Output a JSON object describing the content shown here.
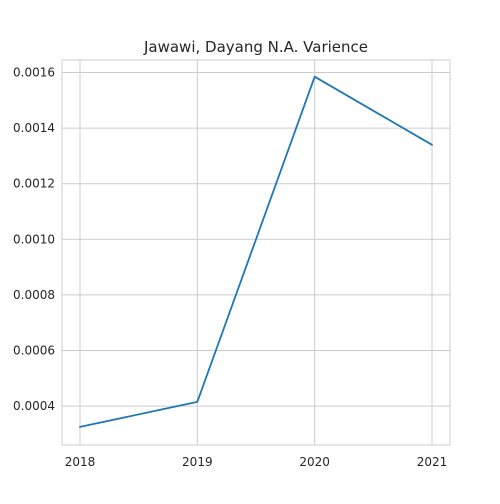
{
  "chart_data": {
    "type": "line",
    "title": "Jawawi, Dayang N.A. Varience",
    "xlabel": "",
    "ylabel": "",
    "x": [
      "2018",
      "2019",
      "2020",
      "2021"
    ],
    "series": [
      {
        "values": [
          0.000325,
          0.000415,
          0.001585,
          0.00134
        ],
        "color": "#1f77b4"
      }
    ],
    "ylim": [
      0.00026,
      0.001645
    ],
    "yticks": [
      0.0004,
      0.0006,
      0.0008,
      0.001,
      0.0012,
      0.0014,
      0.0016
    ],
    "ytick_labels": [
      "0.0004",
      "0.0006",
      "0.0008",
      "0.0010",
      "0.0012",
      "0.0014",
      "0.0016"
    ],
    "grid": true,
    "style": {
      "grid_color": "#cccccc",
      "frame_color": "#cccccc",
      "text_color": "#262626"
    }
  }
}
